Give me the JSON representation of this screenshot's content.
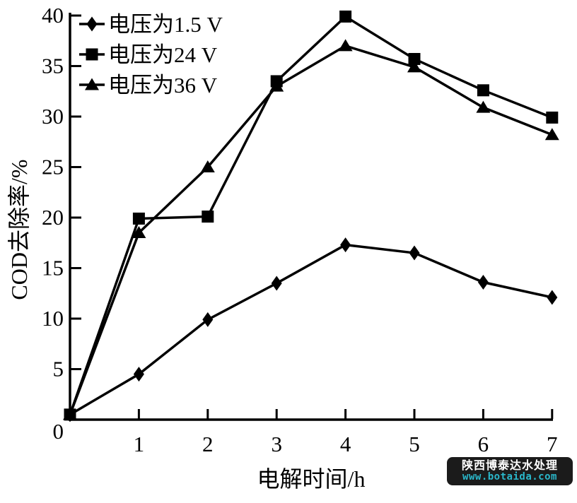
{
  "chart_data": {
    "type": "line",
    "x": [
      0,
      1,
      2,
      3,
      4,
      5,
      6,
      7
    ],
    "series": [
      {
        "name": "电压为1.5 V",
        "marker": "diamond",
        "values": [
          0.5,
          4.5,
          9.9,
          13.5,
          17.3,
          16.5,
          13.6,
          12.1
        ]
      },
      {
        "name": "电压为24 V",
        "marker": "square",
        "values": [
          0.5,
          19.9,
          20.1,
          33.5,
          39.9,
          35.7,
          32.6,
          29.9
        ]
      },
      {
        "name": "电压为36 V",
        "marker": "triangle",
        "values": [
          0.5,
          18.5,
          25.0,
          33.0,
          37.0,
          34.9,
          30.9,
          28.2
        ]
      }
    ],
    "xlabel": "电解时间/h",
    "ylabel": "COD去除率/%",
    "xlim": [
      0,
      7
    ],
    "ylim": [
      0,
      40
    ],
    "x_ticks": [
      1,
      2,
      3,
      4,
      5,
      6,
      7
    ],
    "y_ticks": [
      5,
      10,
      15,
      20,
      25,
      30,
      35,
      40
    ],
    "origin_label": "0",
    "grid": false,
    "legend_position": "top-left",
    "line_color": "#000000"
  },
  "watermark": {
    "line1": "陕西博泰达水处理",
    "line2": "www.botaida.com",
    "bg_color": "#1b1b1b",
    "line1_color": "#ffffff",
    "line2_color": "#2ab7ca"
  }
}
